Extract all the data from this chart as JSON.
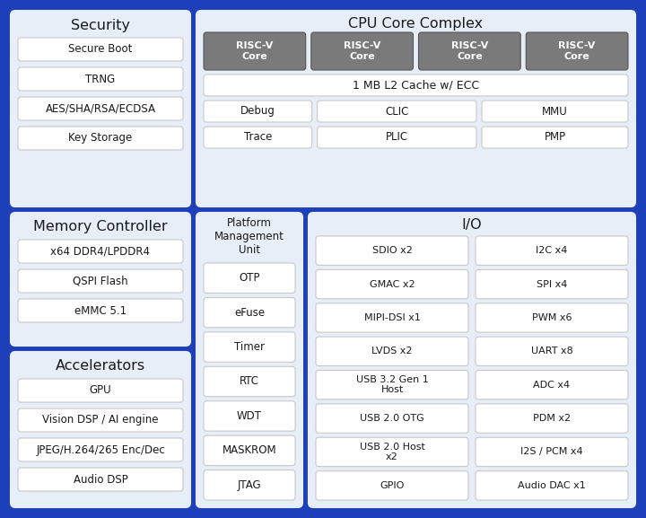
{
  "fig_bg": "#1e3fba",
  "section_bg": "#e8eef8",
  "section_edge": "#c0cce8",
  "box_fill": "#ffffff",
  "box_edge": "#c8c8c8",
  "dark_fill": "#7a7a7a",
  "dark_edge": "#555555",
  "dark_text": "#ffffff",
  "title_color": "#1a1a1a",
  "text_color": "#1a1a1a",
  "sections": {
    "security": {
      "title": "Security",
      "items": [
        "Secure Boot",
        "TRNG",
        "AES/SHA/RSA/ECDSA",
        "Key Storage"
      ]
    },
    "cpu": {
      "title": "CPU Core Complex",
      "cores": [
        "RISC-V\nCore",
        "RISC-V\nCore",
        "RISC-V\nCore",
        "RISC-V\nCore"
      ],
      "cache": "1 MB L2 Cache w/ ECC",
      "row1": [
        "Debug",
        "CLIC",
        "MMU"
      ],
      "row2": [
        "Trace",
        "PLIC",
        "PMP"
      ]
    },
    "memory": {
      "title": "Memory Controller",
      "items": [
        "x64 DDR4/LPDDR4",
        "QSPI Flash",
        "eMMC 5.1"
      ]
    },
    "pmu": {
      "title": "Platform\nManagement\nUnit",
      "items": [
        "OTP",
        "eFuse",
        "Timer",
        "RTC",
        "WDT",
        "MASKROM",
        "JTAG"
      ]
    },
    "io": {
      "title": "I/O",
      "col1": [
        "SDIO x2",
        "GMAC x2",
        "MIPI-DSI x1",
        "LVDS x2",
        "USB 3.2 Gen 1\nHost",
        "USB 2.0 OTG",
        "USB 2.0 Host\nx2",
        "GPIO"
      ],
      "col2": [
        "I2C x4",
        "SPI x4",
        "PWM x6",
        "UART x8",
        "ADC x4",
        "PDM x2",
        "I2S / PCM x4",
        "Audio DAC x1"
      ]
    },
    "accelerators": {
      "title": "Accelerators",
      "items": [
        "GPU",
        "Vision DSP / AI engine",
        "JPEG/H.264/265 Enc/Dec",
        "Audio DSP"
      ]
    }
  }
}
